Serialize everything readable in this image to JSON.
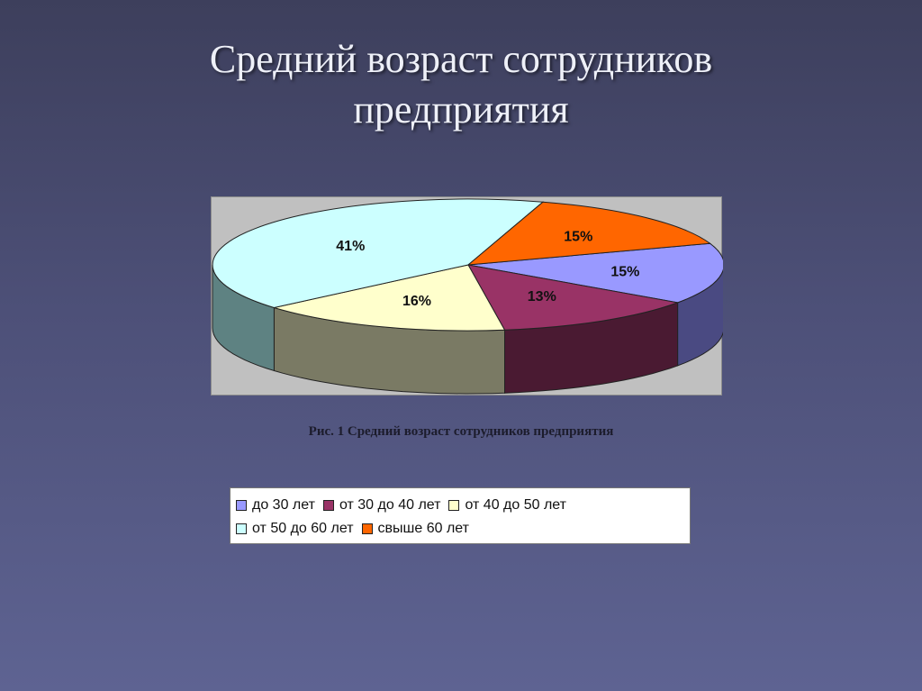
{
  "slide": {
    "title_line1": "Средний возраст сотрудников",
    "title_line2": "предприятия",
    "caption": "Рис. 1 Средний возраст сотрудников предприятия"
  },
  "chart_data": {
    "type": "pie",
    "style": "3d-exploded",
    "labels": [
      "до 30 лет",
      "от 30 до 40 лет",
      "от 40 до 50 лет",
      "от 50 до 60 лет",
      "свыше 60 лет"
    ],
    "values": [
      15,
      13,
      16,
      41,
      15
    ],
    "data_labels": [
      "15%",
      "13%",
      "16%",
      "41%",
      "15%"
    ],
    "colors": [
      "#9999ff",
      "#993366",
      "#ffffcc",
      "#ccffff",
      "#ff6600"
    ],
    "side_colors": [
      "#4a4a82",
      "#4a1a32",
      "#7a7a64",
      "#5e8282",
      "#8a3a00"
    ],
    "legend_position": "bottom",
    "start_angle_deg": 341
  }
}
